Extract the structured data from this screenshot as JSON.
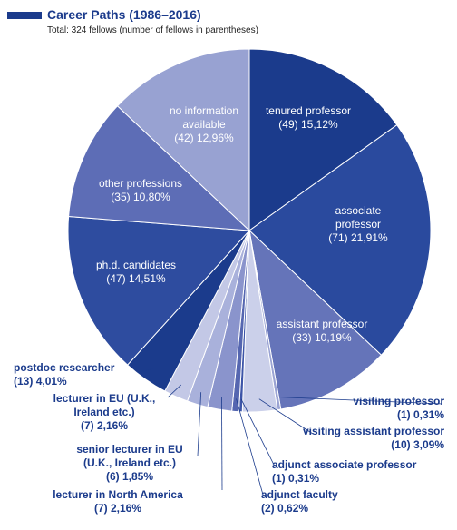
{
  "chart_data": {
    "type": "pie",
    "title": "Career Paths (1986–2016)",
    "subtitle": "Total: 324 fellows (number of fellows in parentheses)",
    "categories": [
      "tenured professor",
      "associate professor",
      "assistant professor",
      "visiting professor",
      "visiting assistant professor",
      "adjunct associate professor",
      "adjunct faculty",
      "lecturer in North America",
      "senior lecturer in EU (U.K., Ireland etc.)",
      "lecturer in EU (U.K., Ireland etc.)",
      "postdoc researcher",
      "ph.d. candidates",
      "other professions",
      "no information available"
    ],
    "values": [
      49,
      71,
      33,
      1,
      10,
      1,
      2,
      7,
      6,
      7,
      13,
      47,
      35,
      42
    ],
    "value_labels": [
      "(49)",
      "(71)",
      "(33)",
      "(1)",
      "(10)",
      "(1)",
      "(2)",
      "(7)",
      "(6)",
      "(7)",
      "(13)",
      "(47)",
      "(35)",
      "(42)"
    ],
    "percents": [
      15.12,
      21.91,
      10.19,
      0.31,
      3.09,
      0.31,
      0.62,
      2.16,
      1.85,
      2.16,
      4.01,
      14.51,
      10.8,
      12.96
    ],
    "percent_labels": [
      "15,12%",
      "21,91%",
      "10,19%",
      "0,31%",
      "3,09%",
      "0,31%",
      "0,62%",
      "2,16%",
      "1,85%",
      "2,16%",
      "4,01%",
      "14,51%",
      "10,80%",
      "12,96%"
    ],
    "colors": [
      "#1b3b8c",
      "#2a4a9e",
      "#6574b9",
      "#9aa3d3",
      "#cbd0ea",
      "#3d55a8",
      "#5566b0",
      "#8a94cc",
      "#a9b1db",
      "#c3c8e6",
      "#1b3b8c",
      "#2e4c9f",
      "#5d6db6",
      "#98a2d2"
    ]
  }
}
